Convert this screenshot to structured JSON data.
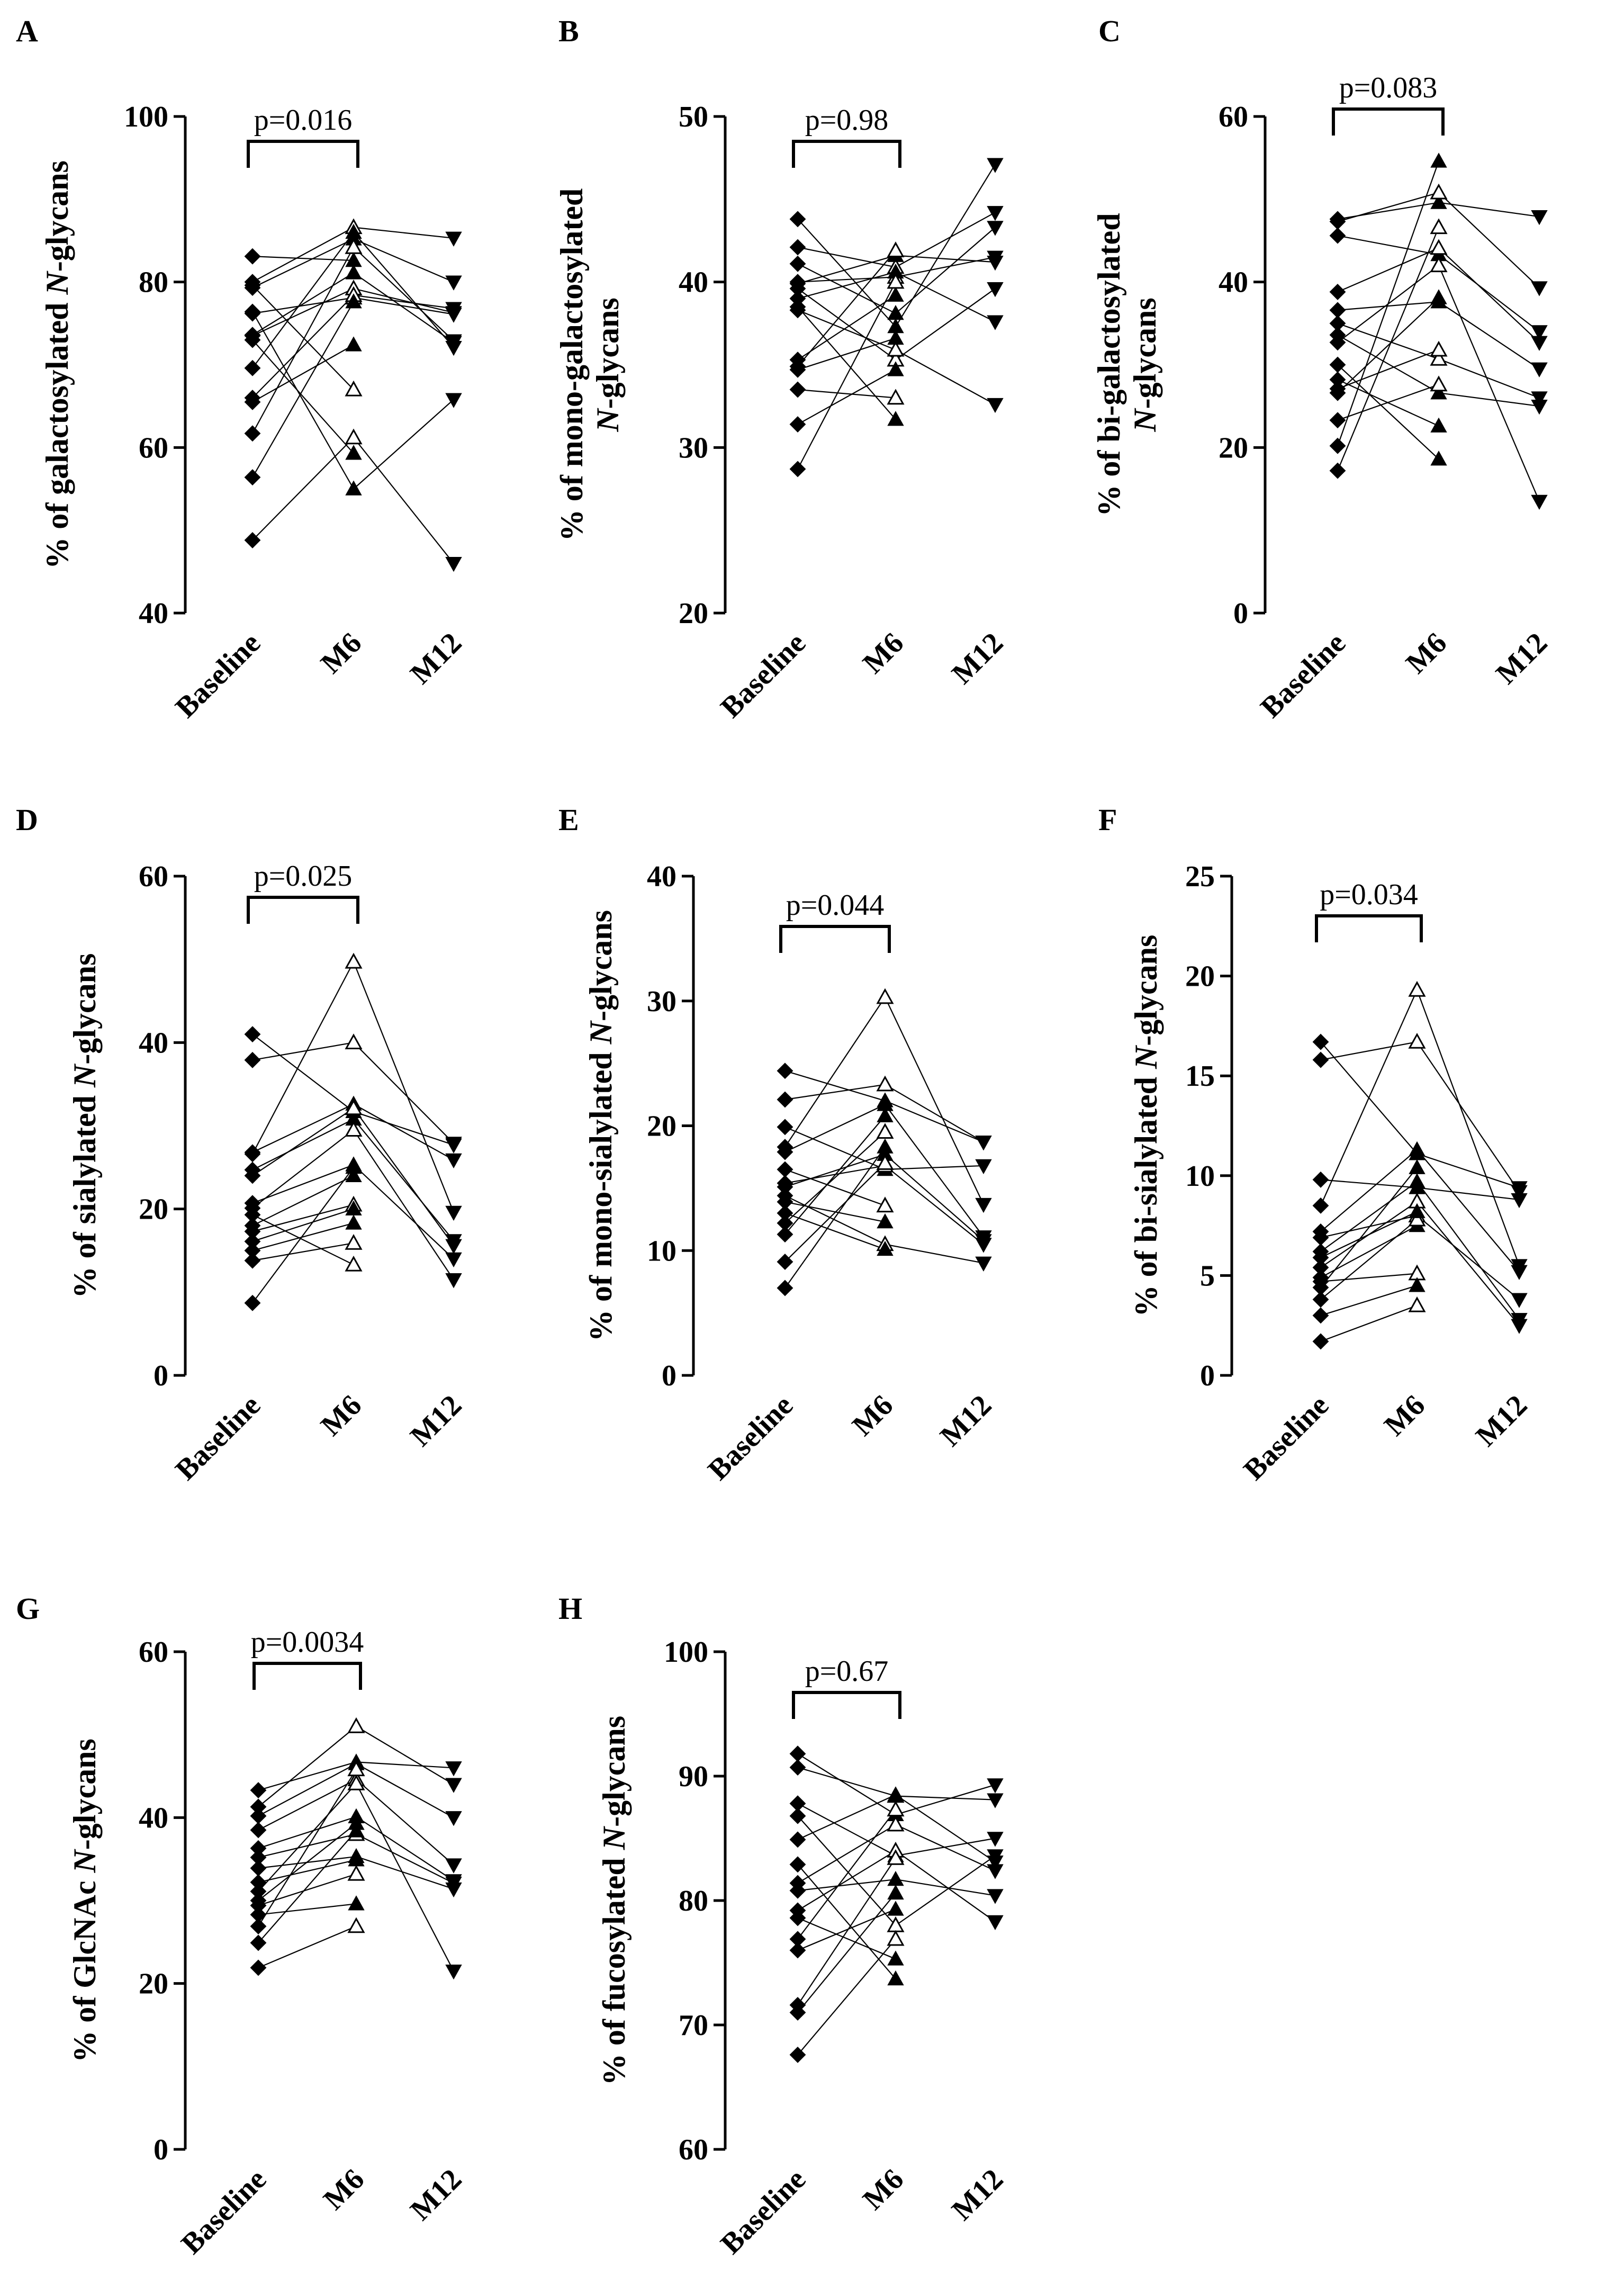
{
  "figure": {
    "categories": [
      "Baseline",
      "M6",
      "M12"
    ]
  },
  "chart_data": [
    {
      "type": "scatter",
      "letter": "A",
      "ylabel_parts": [
        {
          "t": "% of galactosylated "
        },
        {
          "t": "N",
          "i": true
        },
        {
          "t": "-glycans"
        }
      ],
      "ylim": [
        40,
        100
      ],
      "yticks": [
        40,
        60,
        80,
        100
      ],
      "pvalue": "p=0.016",
      "categories": [
        "Baseline",
        "M6",
        "M12"
      ],
      "subjects": [
        [
          83.1,
          82.6,
          null
        ],
        [
          80.0,
          86.6,
          85.3
        ],
        [
          79.3,
          85.2,
          80.0
        ],
        [
          76.2,
          78.1,
          76.1
        ],
        [
          73.6,
          81.1,
          72.7
        ],
        [
          73.5,
          79.2,
          76.3
        ],
        [
          69.6,
          86.0,
          72.1
        ],
        [
          66.0,
          78.4,
          76.8
        ],
        [
          65.5,
          72.4,
          null
        ],
        [
          61.7,
          84.2,
          72.9
        ],
        [
          56.4,
          77.6,
          null
        ],
        [
          48.8,
          61.2,
          46.0
        ],
        [
          76.4,
          55.0,
          65.8
        ],
        [
          79.6,
          67.0,
          null
        ],
        [
          73.0,
          59.3,
          null
        ]
      ]
    },
    {
      "type": "scatter",
      "letter": "B",
      "ylabel_parts": [
        {
          "t": "% of mono-galactosylated"
        }
      ],
      "ylabel_parts2": [
        {
          "t": "N",
          "i": true
        },
        {
          "t": "-glycans"
        }
      ],
      "ylim": [
        20,
        50
      ],
      "yticks": [
        20,
        30,
        40,
        50
      ],
      "pvalue": "p=0.98",
      "categories": [
        "Baseline",
        "M6",
        "M12"
      ],
      "subjects": [
        [
          43.8,
          37.3,
          47.1
        ],
        [
          42.1,
          40.9,
          44.2
        ],
        [
          41.1,
          38.1,
          43.3
        ],
        [
          40.0,
          40.3,
          41.5
        ],
        [
          39.9,
          41.6,
          41.2
        ],
        [
          39.6,
          35.3,
          39.6
        ],
        [
          39.0,
          40.6,
          37.6
        ],
        [
          38.3,
          35.9,
          32.6
        ],
        [
          35.3,
          39.2,
          null
        ],
        [
          34.9,
          41.9,
          null
        ],
        [
          34.7,
          36.6,
          null
        ],
        [
          33.5,
          33.0,
          null
        ],
        [
          31.4,
          34.7,
          null
        ],
        [
          28.7,
          40.0,
          null
        ],
        [
          38.5,
          31.7,
          null
        ]
      ]
    },
    {
      "type": "scatter",
      "letter": "C",
      "ylabel_parts": [
        {
          "t": "% of bi-galactosylated"
        }
      ],
      "ylabel_parts2": [
        {
          "t": "N",
          "i": true
        },
        {
          "t": "-glycans"
        }
      ],
      "ylim": [
        0,
        60
      ],
      "yticks": [
        0,
        20,
        40,
        60
      ],
      "pvalue": "p=0.083",
      "categories": [
        "Baseline",
        "M6",
        "M12"
      ],
      "subjects": [
        [
          47.6,
          49.6,
          47.9
        ],
        [
          47.3,
          50.8,
          39.3
        ],
        [
          45.6,
          43.3,
          34.0
        ],
        [
          38.8,
          44.1,
          32.7
        ],
        [
          36.6,
          37.6,
          29.5
        ],
        [
          35.0,
          30.7,
          26.0
        ],
        [
          33.6,
          26.6,
          25.0
        ],
        [
          32.7,
          42.0,
          13.5
        ],
        [
          28.2,
          22.6,
          null
        ],
        [
          27.1,
          31.8,
          null
        ],
        [
          26.6,
          38.1,
          null
        ],
        [
          23.3,
          27.6,
          null
        ],
        [
          20.2,
          54.6,
          null
        ],
        [
          17.2,
          46.6,
          null
        ],
        [
          30.0,
          18.6,
          null
        ]
      ]
    },
    {
      "type": "scatter",
      "letter": "D",
      "ylabel_parts": [
        {
          "t": "% of sialylated "
        },
        {
          "t": "N",
          "i": true
        },
        {
          "t": "-glycans"
        }
      ],
      "ylim": [
        0,
        60
      ],
      "yticks": [
        0,
        20,
        40,
        60
      ],
      "pvalue": "p=0.025",
      "categories": [
        "Baseline",
        "M6",
        "M12"
      ],
      "subjects": [
        [
          41.0,
          31.7,
          27.7
        ],
        [
          37.9,
          40.0,
          27.9
        ],
        [
          26.8,
          32.6,
          25.9
        ],
        [
          26.6,
          49.7,
          19.6
        ],
        [
          24.7,
          30.8,
          16.2
        ],
        [
          24.0,
          32.1,
          15.6
        ],
        [
          20.7,
          25.3,
          14.0
        ],
        [
          20.1,
          29.5,
          11.5
        ],
        [
          18.0,
          24.0,
          null
        ],
        [
          17.3,
          20.5,
          null
        ],
        [
          16.1,
          20.0,
          null
        ],
        [
          13.8,
          15.9,
          null
        ],
        [
          8.7,
          25.0,
          null
        ],
        [
          19.3,
          13.3,
          null
        ],
        [
          15.0,
          18.3,
          null
        ]
      ]
    },
    {
      "type": "scatter",
      "letter": "E",
      "ylabel_parts": [
        {
          "t": "% of mono-sialylated "
        },
        {
          "t": "N",
          "i": true
        },
        {
          "t": "-glycans"
        }
      ],
      "ylim": [
        0,
        40
      ],
      "yticks": [
        0,
        10,
        20,
        30,
        40
      ],
      "pvalue": "p=0.044",
      "categories": [
        "Baseline",
        "M6",
        "M12"
      ],
      "subjects": [
        [
          24.4,
          22.0,
          18.7
        ],
        [
          22.1,
          23.3,
          18.7
        ],
        [
          19.9,
          16.5,
          16.8
        ],
        [
          18.3,
          30.3,
          13.7
        ],
        [
          17.9,
          21.7,
          11.1
        ],
        [
          15.4,
          16.8,
          10.5
        ],
        [
          15.1,
          17.7,
          10.8
        ],
        [
          14.4,
          10.5,
          9.0
        ],
        [
          13.9,
          12.3,
          null
        ],
        [
          12.2,
          19.5,
          null
        ],
        [
          11.3,
          20.8,
          null
        ],
        [
          9.1,
          17.0,
          null
        ],
        [
          7.0,
          18.3,
          null
        ],
        [
          16.5,
          13.6,
          null
        ],
        [
          13.0,
          10.1,
          null
        ]
      ]
    },
    {
      "type": "scatter",
      "letter": "F",
      "ylabel_parts": [
        {
          "t": "% of bi-sialylated "
        },
        {
          "t": "N",
          "i": true
        },
        {
          "t": "-glycans"
        }
      ],
      "ylim": [
        0,
        25
      ],
      "yticks": [
        0,
        5,
        10,
        15,
        20,
        25
      ],
      "pvalue": "p=0.034",
      "categories": [
        "Baseline",
        "M6",
        "M12"
      ],
      "subjects": [
        [
          16.7,
          11.1,
          9.4
        ],
        [
          15.8,
          16.7,
          9.2
        ],
        [
          9.8,
          9.4,
          8.8
        ],
        [
          8.5,
          19.3,
          5.5
        ],
        [
          7.2,
          11.3,
          5.2
        ],
        [
          6.9,
          8.0,
          3.8
        ],
        [
          6.2,
          9.7,
          2.8
        ],
        [
          5.4,
          8.7,
          2.5
        ],
        [
          4.9,
          7.5,
          null
        ],
        [
          4.7,
          5.1,
          null
        ],
        [
          4.4,
          10.4,
          null
        ],
        [
          3.8,
          7.8,
          null
        ],
        [
          3.0,
          4.5,
          null
        ],
        [
          1.7,
          3.5,
          null
        ],
        [
          5.9,
          8.2,
          null
        ]
      ]
    },
    {
      "type": "scatter",
      "letter": "G",
      "ylabel_parts": [
        {
          "t": "% of GlcNAc "
        },
        {
          "t": "N",
          "i": true
        },
        {
          "t": "-glycans"
        }
      ],
      "ylim": [
        0,
        60
      ],
      "yticks": [
        0,
        20,
        40,
        60
      ],
      "pvalue": "p=0.0034",
      "categories": [
        "Baseline",
        "M6",
        "M12"
      ],
      "subjects": [
        [
          43.3,
          46.7,
          46.0
        ],
        [
          41.3,
          51.0,
          44.0
        ],
        [
          40.2,
          46.5,
          40.0
        ],
        [
          38.5,
          44.6,
          34.3
        ],
        [
          36.3,
          40.1,
          32.4
        ],
        [
          35.2,
          38.0,
          32.1
        ],
        [
          33.9,
          35.3,
          31.4
        ],
        [
          31.1,
          44.1,
          21.5
        ],
        [
          30.0,
          39.3,
          null
        ],
        [
          29.4,
          33.2,
          null
        ],
        [
          28.3,
          29.6,
          null
        ],
        [
          26.9,
          45.8,
          null
        ],
        [
          24.9,
          38.4,
          null
        ],
        [
          21.9,
          26.9,
          null
        ],
        [
          32.2,
          34.9,
          null
        ]
      ]
    },
    {
      "type": "scatter",
      "letter": "H",
      "ylabel_parts": [
        {
          "t": "% of fucosylated "
        },
        {
          "t": "N",
          "i": true
        },
        {
          "t": "-glycans"
        }
      ],
      "ylim": [
        60,
        100
      ],
      "yticks": [
        60,
        70,
        80,
        90,
        100
      ],
      "pvalue": "p=0.67",
      "categories": [
        "Baseline",
        "M6",
        "M12"
      ],
      "subjects": [
        [
          91.8,
          86.9,
          89.3
        ],
        [
          90.7,
          88.4,
          88.1
        ],
        [
          87.8,
          83.6,
          85.0
        ],
        [
          86.8,
          78.0,
          83.6
        ],
        [
          84.9,
          88.5,
          83.1
        ],
        [
          81.4,
          86.1,
          82.4
        ],
        [
          80.8,
          81.7,
          80.4
        ],
        [
          79.2,
          84.0,
          78.3
        ],
        [
          78.6,
          75.3,
          null
        ],
        [
          76.9,
          87.3,
          null
        ],
        [
          76.0,
          79.3,
          null
        ],
        [
          71.6,
          83.4,
          null
        ],
        [
          71.0,
          80.6,
          null
        ],
        [
          67.6,
          76.9,
          null
        ],
        [
          82.9,
          73.7,
          null
        ]
      ]
    }
  ]
}
